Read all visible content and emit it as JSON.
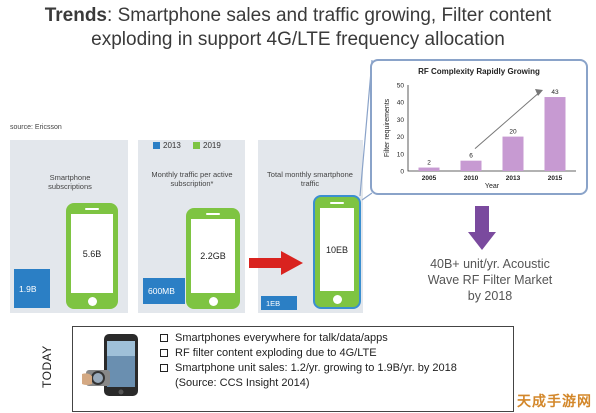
{
  "header": {
    "title_bold": "Trends",
    "title_line1": ": Smartphone sales and traffic growing, Filter content",
    "title_line2": "exploding in support 4G/LTE frequency allocation"
  },
  "source": "source: Ericsson",
  "legend": [
    {
      "label": "2013",
      "color": "#2b7fc5"
    },
    {
      "label": "2019",
      "color": "#7ec442"
    }
  ],
  "panels": [
    {
      "label": "Smartphone subscriptions",
      "value_2013": "1.9B",
      "value_2019": "5.6B"
    },
    {
      "label": "Monthly traffic per active subscription*",
      "value_2013": "600MB",
      "value_2019": "2.2GB"
    },
    {
      "label": "Total monthly smartphone traffic",
      "value_2013": "1EB",
      "value_2019": "10EB"
    }
  ],
  "chart_data": {
    "type": "bar",
    "title": "RF Complexity Rapidly Growing",
    "xlabel": "Year",
    "ylabel": "Filter requirements",
    "categories": [
      "2005",
      "2010",
      "2013",
      "2015"
    ],
    "values": [
      2,
      6,
      20,
      43
    ],
    "yticks": [
      0,
      10,
      20,
      30,
      40,
      50
    ],
    "ylim": [
      0,
      50
    ],
    "bar_color": "#c79ad2"
  },
  "market": {
    "line1": "40B+ unit/yr. Acoustic",
    "line2": "Wave RF Filter Market",
    "line3": "by 2018"
  },
  "today": {
    "label": "TODAY",
    "bullets": [
      "Smartphones everywhere for talk/data/apps",
      "RF filter content exploding due to 4G/LTE",
      "Smartphone unit sales: 1.2/yr. growing to 1.9B/yr. by 2018"
    ],
    "note": "(Source: CCS Insight 2014)"
  },
  "watermark": "天成手游网"
}
